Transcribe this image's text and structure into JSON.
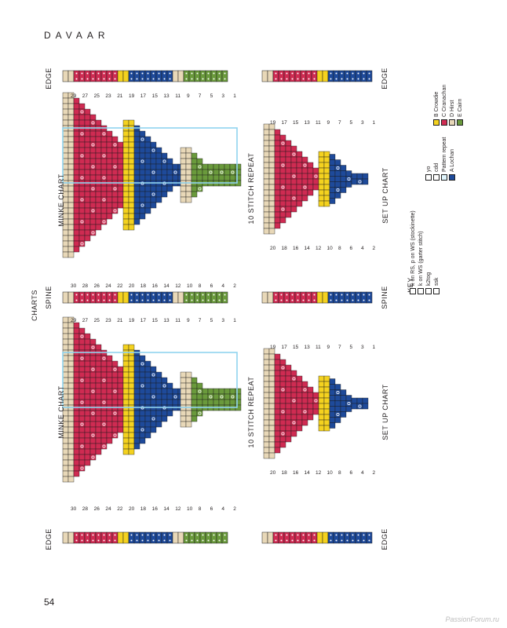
{
  "page": {
    "header": "DAVAAR",
    "page_number": "54",
    "watermark": "PassionForum.ru"
  },
  "labels": {
    "edge": "EDGE",
    "spine": "SPINE",
    "minke_chart": "MINKE CHART",
    "setup_chart": "SET UP CHART",
    "repeat": "10 STITCH REPEAT",
    "charts": "CHARTS",
    "key": "KEY"
  },
  "colors": {
    "A": "#1e4a9a",
    "B": "#f4d21f",
    "C": "#cf2b52",
    "D": "#e8d8b8",
    "E": "#6a9a3c",
    "repeat_box": "#8fd3ee",
    "grid": "#1a1a1a"
  },
  "minke_numbers": {
    "top": [
      "29",
      "27",
      "25",
      "23",
      "21",
      "19",
      "17",
      "15",
      "13",
      "11",
      "9",
      "7",
      "5",
      "3",
      "1"
    ],
    "bottom": [
      "30",
      "28",
      "26",
      "24",
      "22",
      "20",
      "18",
      "16",
      "14",
      "12",
      "10",
      "8",
      "6",
      "4",
      "2"
    ]
  },
  "setup_numbers": {
    "top": [
      "19",
      "17",
      "15",
      "13",
      "11",
      "9",
      "7",
      "5",
      "3",
      "1"
    ],
    "bottom": [
      "20",
      "18",
      "16",
      "14",
      "12",
      "10",
      "8",
      "6",
      "4",
      "2"
    ]
  },
  "key": {
    "symbols": [
      {
        "label": "k on RS, p on WS (stockinette)",
        "icon": "blank-square-icon"
      },
      {
        "label": "k on WS (garter stitch)",
        "icon": "dot-square-icon"
      },
      {
        "label": "k2tog",
        "icon": "k2tog-icon"
      },
      {
        "label": "ssk",
        "icon": "ssk-icon"
      },
      {
        "label": "yo",
        "icon": "yo-icon"
      },
      {
        "label": "cdd",
        "icon": "cdd-icon"
      },
      {
        "label": "Pattern repeat",
        "icon": "repeat-box-icon"
      }
    ],
    "colorways": [
      {
        "label": "A Lochan",
        "color": "#1e4a9a"
      },
      {
        "label": "B Crowdie",
        "color": "#f4d21f"
      },
      {
        "label": "C Cranachan",
        "color": "#cf2b52"
      },
      {
        "label": "D Hirst",
        "color": "#e8d8b8"
      },
      {
        "label": "E Cairn",
        "color": "#6a9a3c"
      }
    ]
  }
}
